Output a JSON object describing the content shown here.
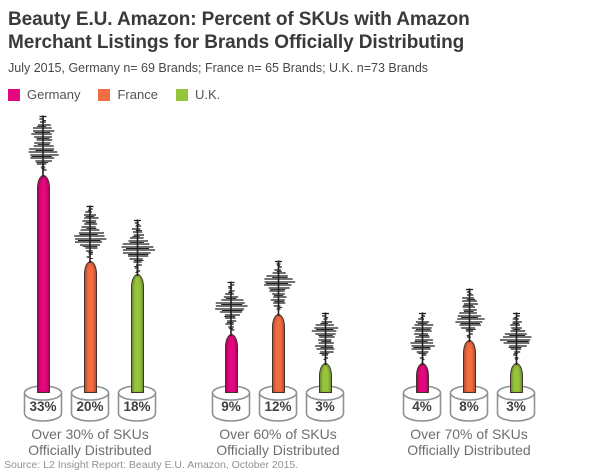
{
  "title": "Beauty E.U. Amazon: Percent of SKUs with Amazon Merchant Listings for Brands Officially Distributing",
  "subtitle": "July 2015, Germany n= 69 Brands; France n= 65 Brands; U.K. n=73 Brands",
  "legend": [
    {
      "label": "Germany",
      "color": "#e4087f"
    },
    {
      "label": "France",
      "color": "#f26c42"
    },
    {
      "label": "U.K.",
      "color": "#96c53d"
    }
  ],
  "colors": {
    "brush": "#1f1f1f",
    "base_outline": "#8f9194",
    "value_label": "#414042",
    "caption_text": "#6d6e71"
  },
  "chart_data": {
    "type": "bar",
    "bar_style": "mascara-wand",
    "unit": "%",
    "legend_position": "top-left",
    "grid": false,
    "categories": [
      "Over 30% of SKUs Officially Distributed",
      "Over 60% of SKUs Officially Distributed",
      "Over 70% of SKUs Officially Distributed"
    ],
    "series": [
      {
        "name": "Germany",
        "color": "#e4087f",
        "values": [
          33,
          9,
          4
        ]
      },
      {
        "name": "France",
        "color": "#f26c42",
        "values": [
          20,
          12,
          8
        ]
      },
      {
        "name": "U.K.",
        "color": "#96c53d",
        "values": [
          18,
          3,
          3
        ]
      }
    ],
    "value_labels": [
      [
        "33%",
        "20%",
        "18%"
      ],
      [
        "9%",
        "12%",
        "3%"
      ],
      [
        "4%",
        "8%",
        "3%"
      ]
    ],
    "groups": [
      {
        "caption_line1": "Over 30% of SKUs",
        "caption_line2": "Officially Distributed"
      },
      {
        "caption_line1": "Over 60% of SKUs",
        "caption_line2": "Officially Distributed"
      },
      {
        "caption_line1": "Over 70% of SKUs",
        "caption_line2": "Officially Distributed"
      }
    ]
  },
  "source": "Source: L2 Insight Report: Beauty E.U. Amazon, October 2015."
}
